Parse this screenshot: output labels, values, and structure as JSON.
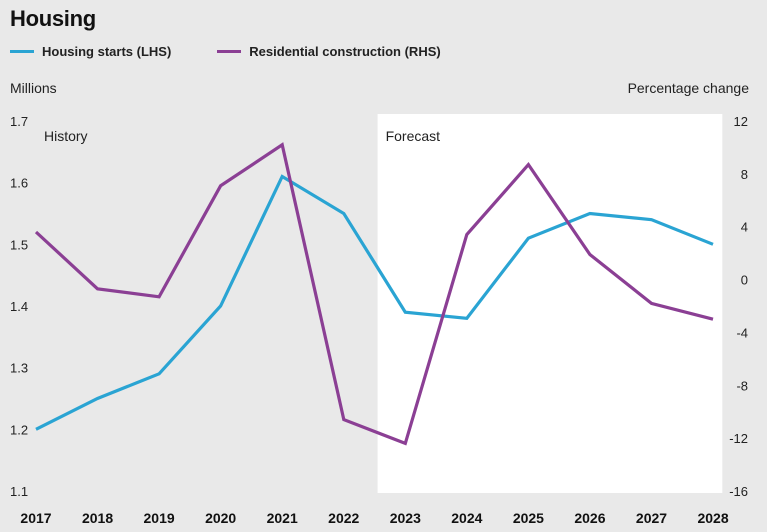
{
  "header": {
    "title": "Housing"
  },
  "legend": [
    {
      "label": "Housing starts (LHS)",
      "color": "#2aa4d3"
    },
    {
      "label": "Residential construction (RHS)",
      "color": "#8b3f94"
    }
  ],
  "axes": {
    "left_unit": "Millions",
    "right_unit": "Percentage change"
  },
  "regions": {
    "history": "History",
    "forecast": "Forecast"
  },
  "chart_data": {
    "type": "line",
    "categories": [
      "2017",
      "2018",
      "2019",
      "2020",
      "2021",
      "2022",
      "2023",
      "2024",
      "2025",
      "2026",
      "2027",
      "2028"
    ],
    "series": [
      {
        "name": "Housing starts (LHS)",
        "axis": "left",
        "color": "#2aa4d3",
        "values": [
          1.2,
          1.25,
          1.29,
          1.4,
          1.61,
          1.55,
          1.39,
          1.38,
          1.51,
          1.55,
          1.54,
          1.5
        ]
      },
      {
        "name": "Residential construction (RHS)",
        "axis": "right",
        "color": "#8b3f94",
        "values": [
          3.6,
          -0.7,
          -1.3,
          7.1,
          10.2,
          -10.6,
          -12.4,
          3.4,
          8.7,
          1.9,
          -1.8,
          -3.0
        ]
      }
    ],
    "ylim_left": [
      1.1,
      1.7
    ],
    "yticks_left": [
      "1.7",
      "1.6",
      "1.5",
      "1.4",
      "1.3",
      "1.2",
      "1.1"
    ],
    "ylim_right": [
      -16,
      12
    ],
    "yticks_right": [
      "12",
      "8",
      "4",
      "0",
      "-4",
      "-8",
      "-12",
      "-16"
    ],
    "forecast_start": "2022",
    "forecast_end": "2028"
  }
}
